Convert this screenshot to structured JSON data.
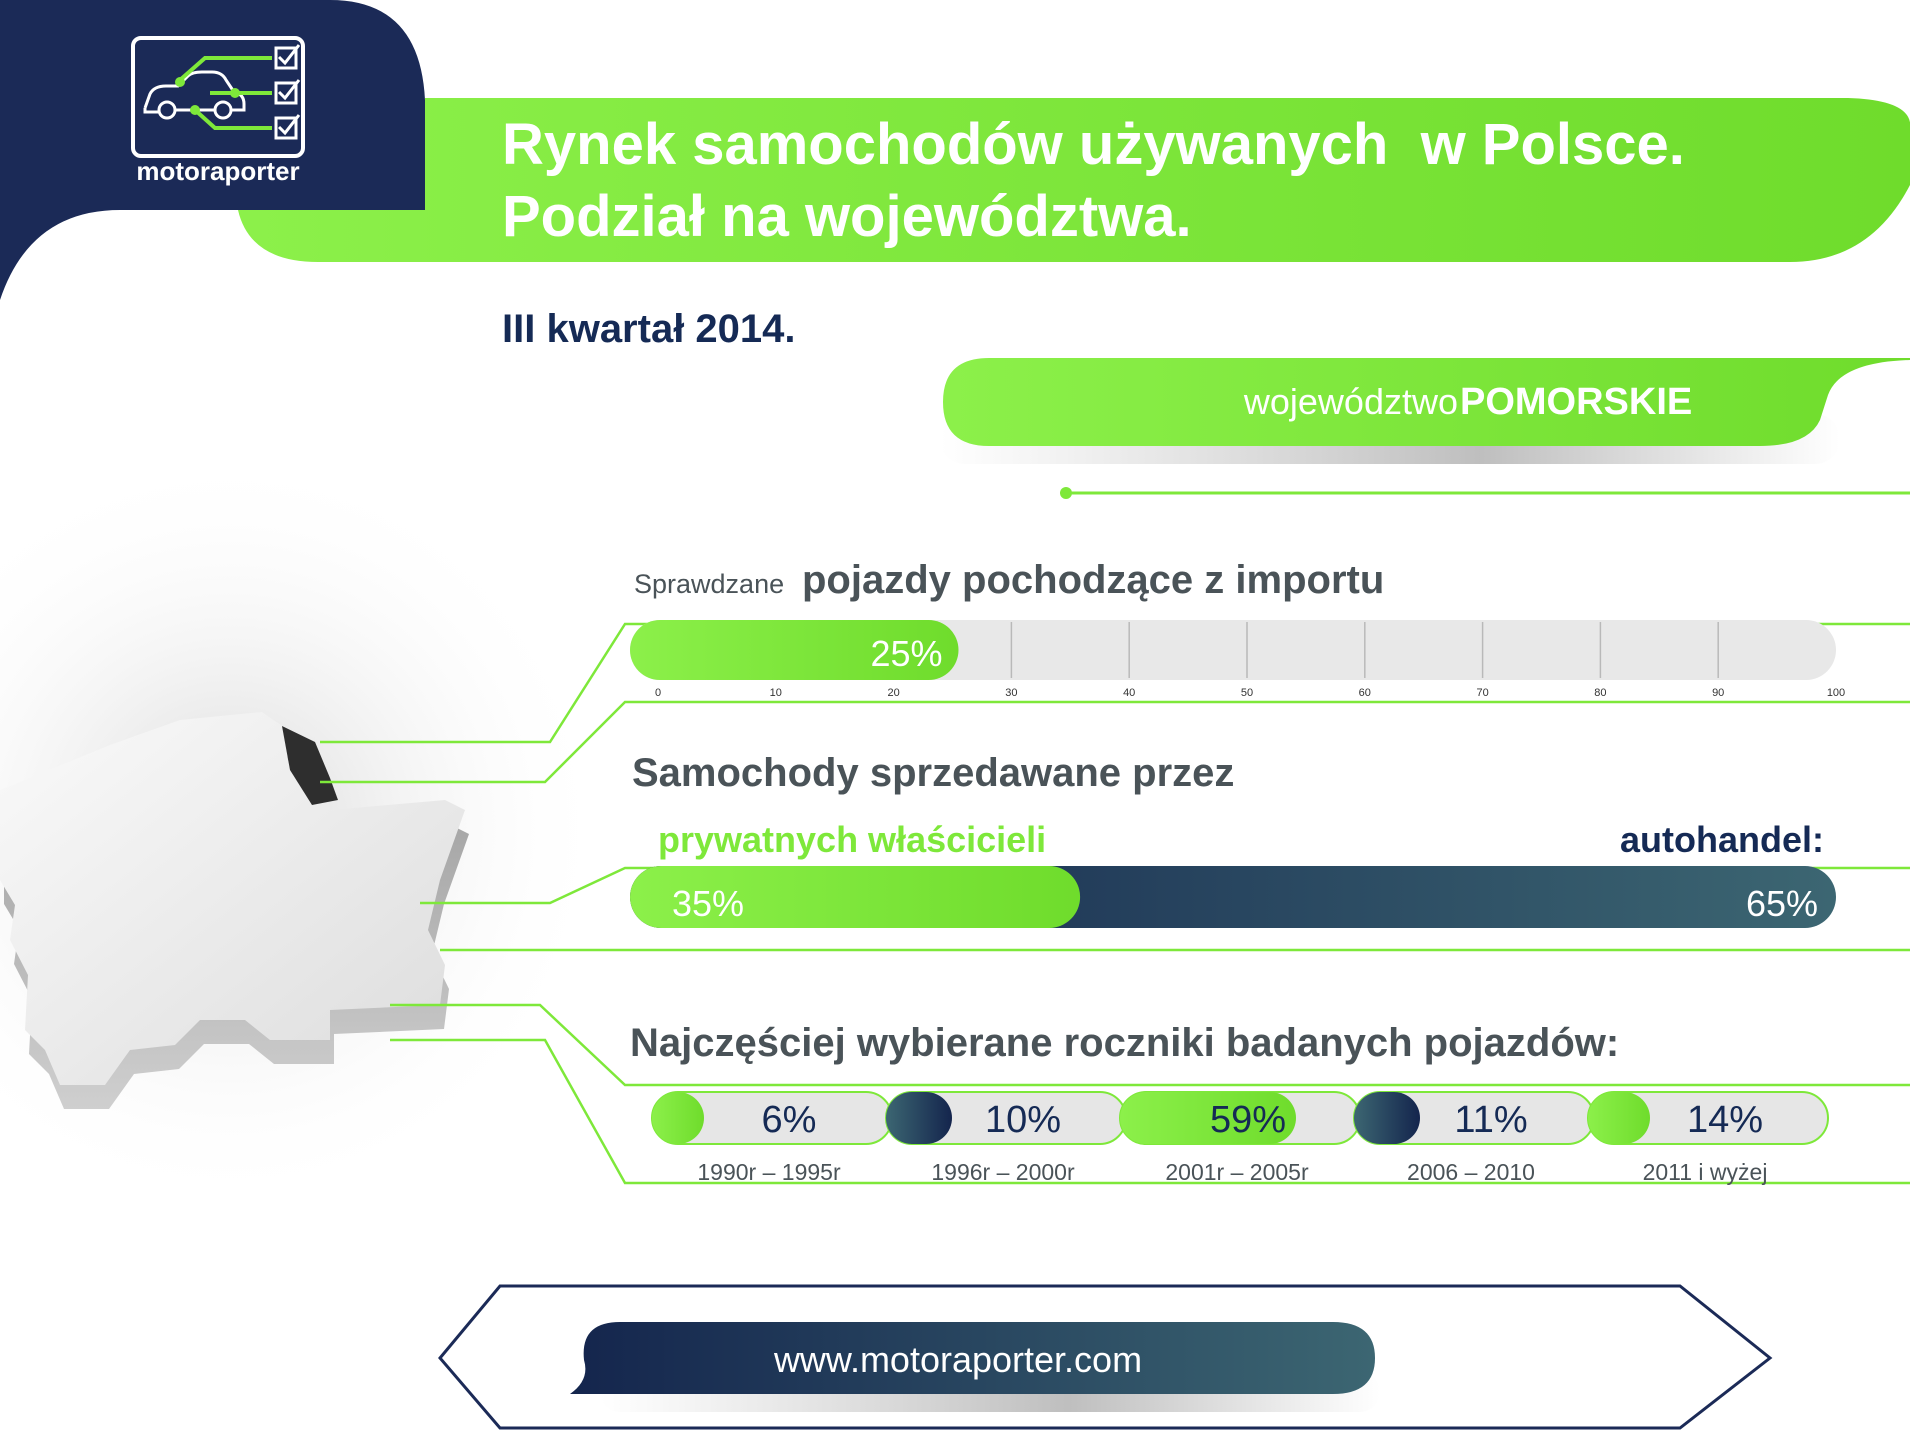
{
  "brand": {
    "logo_text": "motoraporter",
    "website": "www.motoraporter.com"
  },
  "header": {
    "title_line1": "Rynek samochodów używanych  w Polsce.",
    "title_line2": "Podział na województwa."
  },
  "period": "III kwartał 2014.",
  "region": {
    "prefix": "województwo",
    "name": "POMORSKIE"
  },
  "colors": {
    "green": "#7ee83a",
    "navy": "#152a55",
    "grey_track": "#e5e5e5",
    "text_grey": "#4a5358"
  },
  "chart_data": [
    {
      "type": "bar",
      "title_prefix": "Sprawdzane",
      "title": "pojazdy pochodzące z importu",
      "values": [
        25
      ],
      "value_labels": [
        "25%"
      ],
      "xlim": [
        0,
        100
      ],
      "ticks": [
        0,
        10,
        20,
        30,
        40,
        50,
        60,
        70,
        80,
        90,
        100
      ]
    },
    {
      "type": "bar",
      "title": "Samochody sprzedawane przez",
      "stacked": true,
      "series": [
        {
          "name": "prywatnych właścicieli",
          "value": 35,
          "label": "35%"
        },
        {
          "name": "autohandel:",
          "value": 65,
          "label": "65%"
        }
      ]
    },
    {
      "type": "bar",
      "title": "Najczęściej wybierane roczniki badanych pojazdów:",
      "categories": [
        "1990r – 1995r",
        "1996r – 2000r",
        "2001r – 2005r",
        "2006 – 2010",
        "2011 i wyżej"
      ],
      "values": [
        6,
        10,
        59,
        11,
        14
      ],
      "value_labels": [
        "6%",
        "10%",
        "59%",
        "11%",
        "14%"
      ]
    }
  ]
}
